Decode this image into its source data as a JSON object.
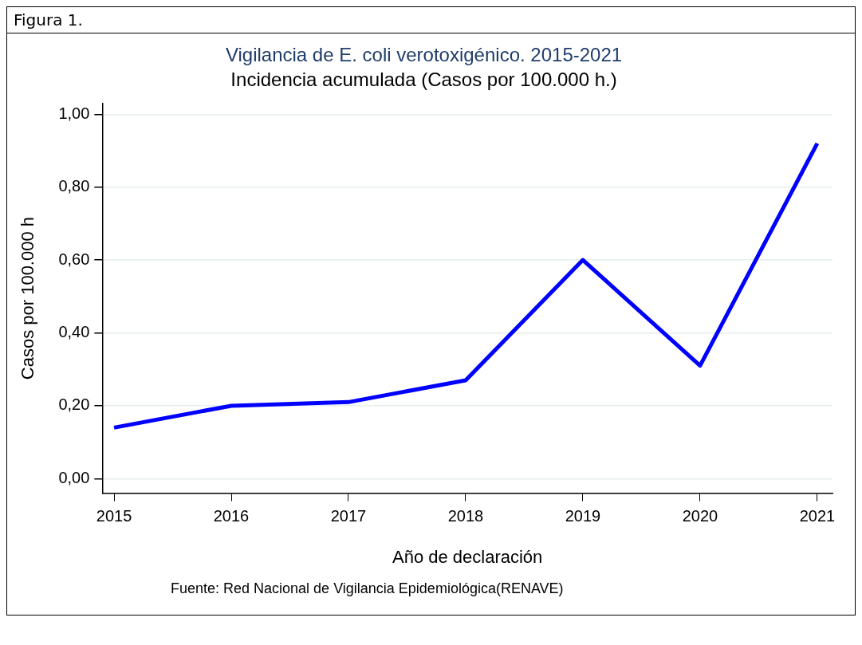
{
  "chart_data": {
    "type": "line",
    "title": "Vigilancia de E. coli verotoxigénico. 2015-2021",
    "subtitle": "Incidencia acumulada (Casos por 100.000 h.)",
    "xlabel": "Año de declaración",
    "ylabel": "Casos por 100.000 h",
    "annotations": [
      "Figura 1.",
      "Fuente: Red Nacional de Vigilancia Epidemiológica(RENAVE)"
    ],
    "x": [
      2015,
      2016,
      2017,
      2018,
      2019,
      2020,
      2021
    ],
    "series": [
      {
        "color": "#0000ff",
        "values": [
          0.14,
          0.2,
          0.21,
          0.27,
          0.6,
          0.31,
          0.92
        ]
      }
    ],
    "xlim": [
      2014.9,
      2021.13
    ],
    "xticks": [
      2015,
      2016,
      2017,
      2018,
      2019,
      2020,
      2021
    ],
    "ylim": [
      -0.04,
      1.03
    ],
    "yticks": [
      {
        "value": 0,
        "label": "0,00"
      },
      {
        "value": 0.2,
        "label": "0,20"
      },
      {
        "value": 0.4,
        "label": "0,40"
      },
      {
        "value": 0.6,
        "label": "0,60"
      },
      {
        "value": 0.8,
        "label": "0,80"
      },
      {
        "value": 1,
        "label": "1,00"
      }
    ],
    "grid": "y",
    "legend": false,
    "marker": "none",
    "line_style": "solid"
  }
}
